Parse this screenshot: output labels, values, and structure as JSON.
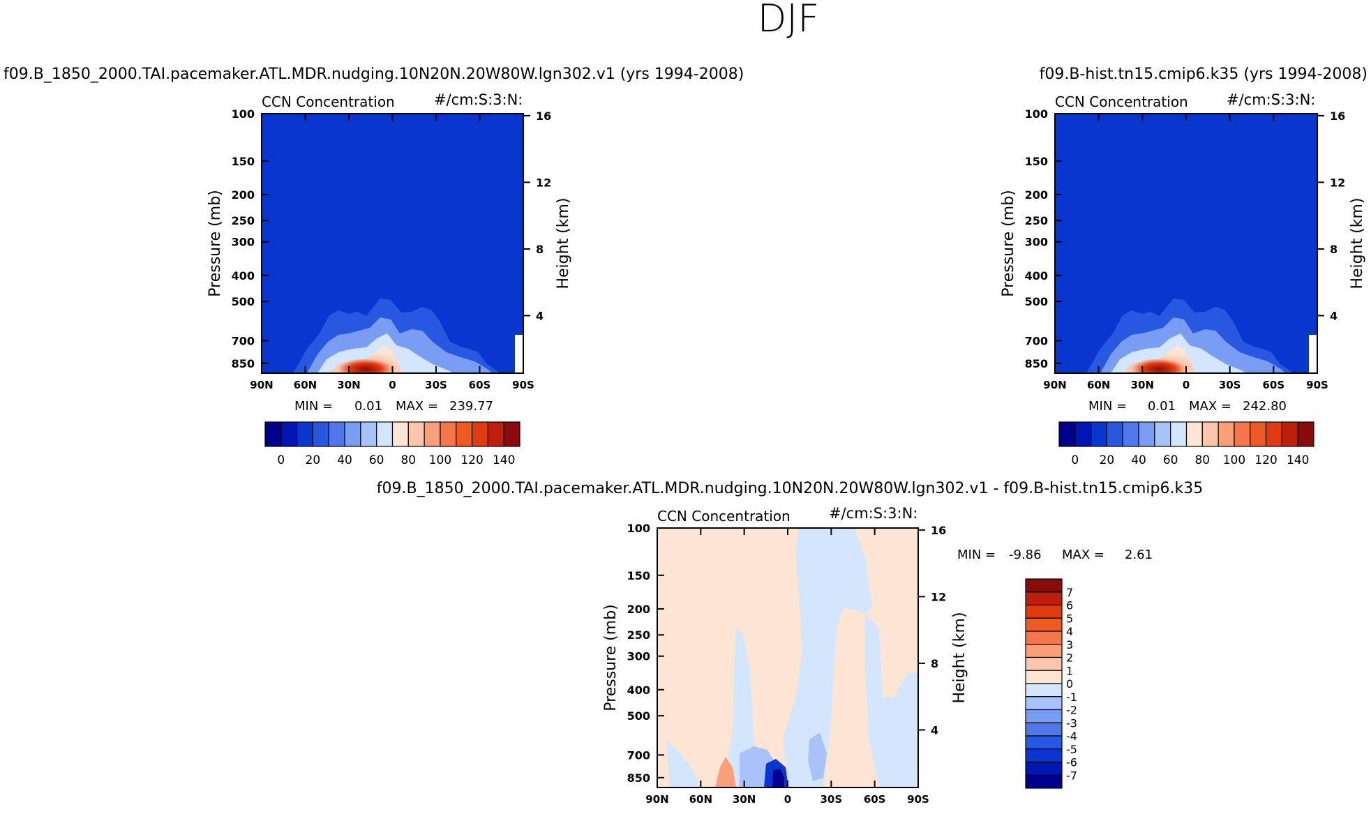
{
  "figure": {
    "title": "DJF"
  },
  "chart_data": [
    {
      "id": "left",
      "type": "heatmap",
      "title": "f09.B_1850_2000.TAI.pacemaker.ATL.MDR.nudging.10N20N.20W80W.lgn302.v1 (yrs 1994-2008)",
      "variable": "CCN Concentration",
      "units": "#/cm:S:3:N:",
      "xlabel": "",
      "ylabel": "Pressure (mb)",
      "ylabel_right": "Height (km)",
      "x_ticks": [
        "90N",
        "60N",
        "30N",
        "0",
        "30S",
        "60S",
        "90S"
      ],
      "y_ticks": [
        "100",
        "150",
        "200",
        "250",
        "300",
        "400",
        "500",
        "700",
        "850"
      ],
      "y_ticks_right": [
        "16",
        "12",
        "8",
        "4"
      ],
      "stats": {
        "min_label": "MIN =",
        "min_value": "0.01",
        "max_label": "MAX =",
        "max_value": "239.77"
      },
      "colorbar": {
        "ticks": [
          "0",
          "20",
          "40",
          "60",
          "80",
          "100",
          "120",
          "140"
        ],
        "colors": [
          "#00008f",
          "#0016b4",
          "#0a36d0",
          "#2958e0",
          "#5078ec",
          "#7a9df4",
          "#a7c3fa",
          "#d4e6fe",
          "#fde5d4",
          "#fcc6ab",
          "#fb9f7b",
          "#f4764a",
          "#ee5a22",
          "#e03a10",
          "#bc1f0c",
          "#8b0a0a"
        ]
      }
    },
    {
      "id": "right",
      "type": "heatmap",
      "title": "f09.B-hist.tn15.cmip6.k35 (yrs 1994-2008)",
      "variable": "CCN Concentration",
      "units": "#/cm:S:3:N:",
      "xlabel": "",
      "ylabel": "Pressure (mb)",
      "ylabel_right": "Height (km)",
      "x_ticks": [
        "90N",
        "60N",
        "30N",
        "0",
        "30S",
        "60S",
        "90S"
      ],
      "y_ticks": [
        "100",
        "150",
        "200",
        "250",
        "300",
        "400",
        "500",
        "700",
        "850"
      ],
      "y_ticks_right": [
        "16",
        "12",
        "8",
        "4"
      ],
      "stats": {
        "min_label": "MIN =",
        "min_value": "0.01",
        "max_label": "MAX =",
        "max_value": "242.80"
      },
      "colorbar": {
        "ticks": [
          "0",
          "20",
          "40",
          "60",
          "80",
          "100",
          "120",
          "140"
        ],
        "colors": [
          "#00008f",
          "#0016b4",
          "#0a36d0",
          "#2958e0",
          "#5078ec",
          "#7a9df4",
          "#a7c3fa",
          "#d4e6fe",
          "#fde5d4",
          "#fcc6ab",
          "#fb9f7b",
          "#f4764a",
          "#ee5a22",
          "#e03a10",
          "#bc1f0c",
          "#8b0a0a"
        ]
      }
    },
    {
      "id": "diff",
      "type": "heatmap",
      "title": "f09.B_1850_2000.TAI.pacemaker.ATL.MDR.nudging.10N20N.20W80W.lgn302.v1 - f09.B-hist.tn15.cmip6.k35",
      "variable": "CCN Concentration",
      "units": "#/cm:S:3:N:",
      "xlabel": "",
      "ylabel": "Pressure (mb)",
      "ylabel_right": "Height (km)",
      "x_ticks": [
        "90N",
        "60N",
        "30N",
        "0",
        "30S",
        "60S",
        "90S"
      ],
      "y_ticks": [
        "100",
        "150",
        "200",
        "250",
        "300",
        "400",
        "500",
        "700",
        "850"
      ],
      "y_ticks_right": [
        "16",
        "12",
        "8",
        "4"
      ],
      "stats": {
        "min_label": "MIN =",
        "min_value": "-9.86",
        "max_label": "MAX =",
        "max_value": "2.61"
      },
      "colorbar": {
        "ticks": [
          "7",
          "6",
          "5",
          "4",
          "3",
          "2",
          "1",
          "0",
          "-1",
          "-2",
          "-3",
          "-4",
          "-5",
          "-6",
          "-7"
        ],
        "colors": [
          "#8b0a0a",
          "#bc1f0c",
          "#e03a10",
          "#ee5a22",
          "#f4764a",
          "#fb9f7b",
          "#fcc6ab",
          "#fde5d4",
          "#d4e6fe",
          "#a7c3fa",
          "#7a9df4",
          "#5078ec",
          "#2958e0",
          "#0a36d0",
          "#0016b4",
          "#00008f"
        ]
      }
    }
  ]
}
